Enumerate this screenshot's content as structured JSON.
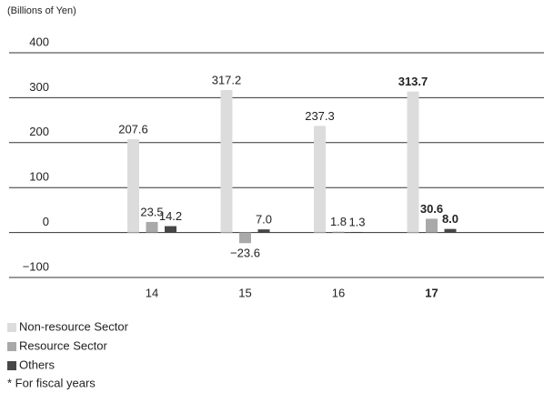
{
  "chart_data": {
    "type": "bar",
    "y_label": "(Billions of Yen)",
    "categories": [
      "14",
      "15",
      "16",
      "17"
    ],
    "highlight": "17",
    "series": [
      {
        "name": "Non-resource Sector",
        "color": "#dcdcdc",
        "values": [
          207.6,
          317.2,
          237.3,
          313.7
        ],
        "value_labels": [
          "207.6",
          "317.2",
          "237.3",
          "313.7"
        ]
      },
      {
        "name": "Resource Sector",
        "color": "#a9a9a9",
        "values": [
          23.5,
          -23.6,
          1.8,
          30.6
        ],
        "value_labels": [
          "23.5",
          "−23.6",
          "1.8",
          "30.6"
        ]
      },
      {
        "name": "Others",
        "color": "#474747",
        "values": [
          14.2,
          7.0,
          1.3,
          8.0
        ],
        "value_labels": [
          "14.2",
          "7.0",
          "1.3",
          "8.0"
        ]
      }
    ],
    "ylim": [
      -100,
      400
    ],
    "yticks": [
      {
        "value": -100,
        "label": "−100"
      },
      0,
      100,
      200,
      300,
      400
    ],
    "grid": true,
    "footnote": "* For fiscal years"
  }
}
